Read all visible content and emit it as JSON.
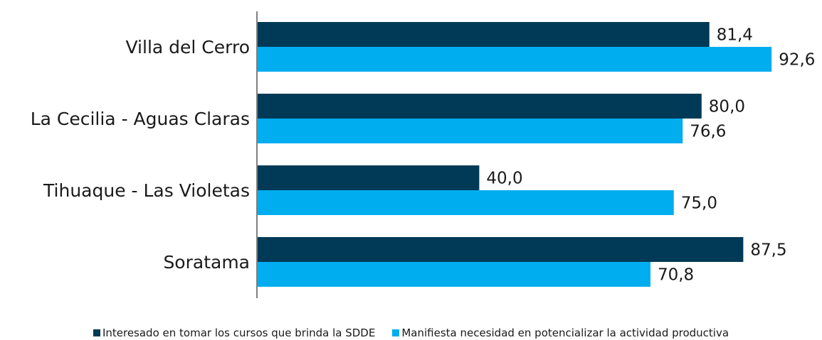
{
  "chart_data": {
    "type": "bar",
    "orientation": "horizontal",
    "categories": [
      "Villa del Cerro",
      "La Cecilia - Aguas Claras",
      "Tihuaque - Las Violetas",
      "Soratama"
    ],
    "series": [
      {
        "name": "Interesado en tomar los cursos que brinda la SDDE",
        "color": "#003a57",
        "values": [
          81.4,
          80.0,
          40.0,
          87.5
        ],
        "labels": [
          "81,4",
          "80,0",
          "40,0",
          "87,5"
        ]
      },
      {
        "name": "Manifiesta necesidad en potencializar la actividad productiva",
        "color": "#00adef",
        "values": [
          92.6,
          76.6,
          75.0,
          70.8
        ],
        "labels": [
          "92,6",
          "76,6",
          "75,0",
          "70,8"
        ]
      }
    ],
    "xlim": [
      0,
      100
    ],
    "grid": false,
    "legend_position": "bottom",
    "axis_color": "#808080"
  }
}
